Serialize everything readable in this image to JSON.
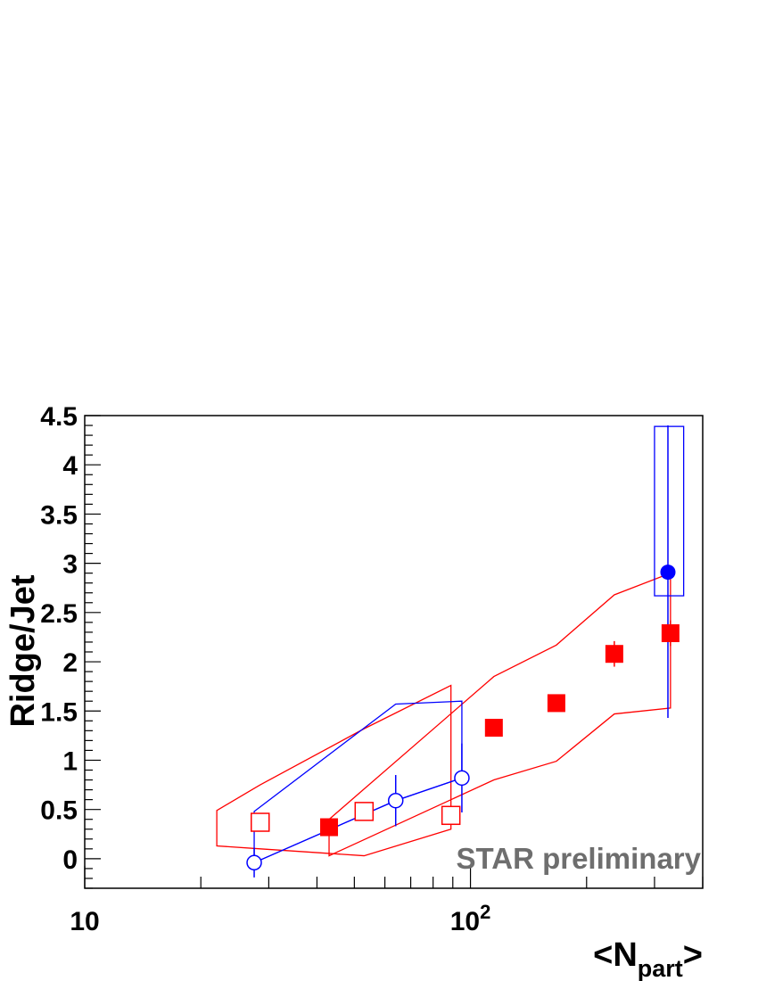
{
  "chart_data": {
    "type": "scatter",
    "xscale": "log",
    "xlim": [
      10,
      400
    ],
    "ylim": [
      -0.3,
      4.5
    ],
    "xlabel": "<N",
    "xlabel_sub": "part",
    "xlabel_suffix": ">",
    "ylabel": "Ridge/Jet",
    "x_ticks": [
      {
        "value": 10,
        "base": "10",
        "exp": ""
      },
      {
        "value": 100,
        "base": "10",
        "exp": "2"
      }
    ],
    "y_ticks": [
      {
        "value": 0,
        "label": "0"
      },
      {
        "value": 0.5,
        "label": "0.5"
      },
      {
        "value": 1,
        "label": "1"
      },
      {
        "value": 1.5,
        "label": "1.5"
      },
      {
        "value": 2,
        "label": "2"
      },
      {
        "value": 2.5,
        "label": "2.5"
      },
      {
        "value": 3,
        "label": "3"
      },
      {
        "value": 3.5,
        "label": "3.5"
      },
      {
        "value": 4,
        "label": "4"
      },
      {
        "value": 4.5,
        "label": "4.5"
      }
    ],
    "annotation": "STAR preliminary",
    "colors": {
      "red": "#ff0000",
      "blue": "#0000ff",
      "watermark": "#6e6e6e"
    },
    "series": [
      {
        "marker": "filled-square",
        "color": "#ff0000",
        "points": [
          {
            "x": 43,
            "y": 0.32,
            "err": 0.05
          },
          {
            "x": 115,
            "y": 1.33,
            "err": 0.05
          },
          {
            "x": 167,
            "y": 1.58,
            "err": 0.05
          },
          {
            "x": 236,
            "y": 2.08,
            "err": 0.13
          },
          {
            "x": 330,
            "y": 2.29,
            "err": 0.13
          }
        ],
        "systematic_band": {
          "x": [
            43,
            115,
            167,
            236,
            330
          ],
          "upper": [
            0.4,
            1.85,
            2.17,
            2.68,
            2.9
          ],
          "lower": [
            0.03,
            0.8,
            0.99,
            1.47,
            1.53
          ]
        }
      },
      {
        "marker": "open-square",
        "color": "#ff0000",
        "points": [
          {
            "x": 28.5,
            "y": 0.37,
            "err": 0.0
          },
          {
            "x": 53,
            "y": 0.48,
            "err": 0.0
          },
          {
            "x": 89,
            "y": 0.44,
            "err": 0.0
          }
        ],
        "systematic_band": {
          "x": [
            22,
            28.5,
            53,
            89
          ],
          "upper": [
            0.49,
            0.75,
            1.32,
            1.76
          ],
          "lower": [
            0.13,
            0.1,
            0.03,
            0.3
          ]
        }
      },
      {
        "marker": "open-circle",
        "color": "#0000ff",
        "connected": true,
        "points": [
          {
            "x": 27.5,
            "y": -0.04,
            "err": 0.15
          },
          {
            "x": 64,
            "y": 0.59,
            "err": 0.26
          },
          {
            "x": 95,
            "y": 0.82,
            "err": 0.35
          }
        ],
        "systematic_band": {
          "x": [
            27.5,
            64,
            95
          ],
          "upper": [
            0.48,
            1.57,
            1.6
          ],
          "lower": [
            -0.04,
            0.59,
            0.82
          ]
        }
      },
      {
        "marker": "filled-circle",
        "color": "#0000ff",
        "points": [
          {
            "x": 325,
            "y": 2.91,
            "err_up": 1.49,
            "err_down": 1.48
          }
        ],
        "systematic_box": {
          "x_lo": 300,
          "x_hi": 357,
          "y_lo": 2.67,
          "y_hi": 4.39
        }
      }
    ]
  }
}
